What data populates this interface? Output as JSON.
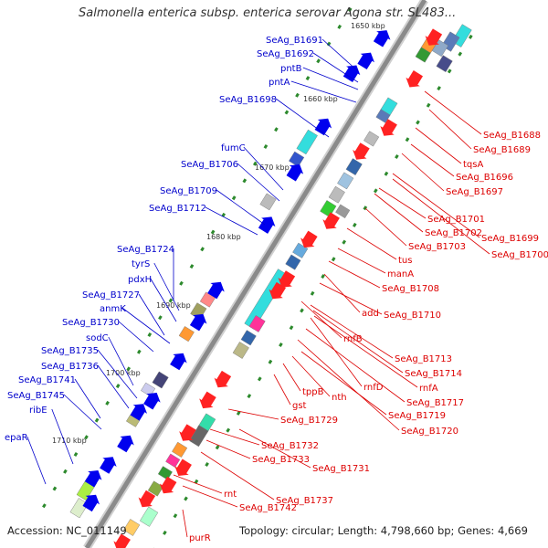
{
  "title": "Salmonella enterica subsp. enterica serovar Agona str. SL483...",
  "footer": {
    "accession": "Accession: NC_011149",
    "summary": "Topology: circular; Length: 4,798,660 bp; Genes: 4,669"
  },
  "colors": {
    "backbone": "#8a8a8a",
    "reverse_label": "#0000cc",
    "forward_label": "#dd0000",
    "tick_mark": "#2d8a2d"
  },
  "ticks": [
    "1650 kbp",
    "1660 kbp",
    "1670 kbp",
    "1680 kbp",
    "1690 kbp",
    "1700 kbp",
    "1710 kbp"
  ],
  "reverse_strand_genes": [
    "SeAg_B1691",
    "SeAg_B1692",
    "pntB",
    "pntA",
    "SeAg_B1698",
    "fumC",
    "SeAg_B1706",
    "SeAg_B1709",
    "SeAg_B1712",
    "SeAg_B1724",
    "tyrS",
    "pdxH",
    "SeAg_B1727",
    "anmK",
    "SeAg_B1730",
    "sodC",
    "SeAg_B1735",
    "SeAg_B1736",
    "SeAg_B1741",
    "SeAg_B1745",
    "ribE",
    "epaR"
  ],
  "forward_strand_genes": [
    "SeAg_B1688",
    "SeAg_B1689",
    "tqsA",
    "SeAg_B1696",
    "SeAg_B1697",
    "SeAg_B1701",
    "SeAg_B1702",
    "SeAg_B1699",
    "SeAg_B1703",
    "SeAg_B1700",
    "tus",
    "manA",
    "SeAg_B1708",
    "add",
    "SeAg_B1710",
    "rnfB",
    "SeAg_B1713",
    "SeAg_B1714",
    "rnfA",
    "rnfD",
    "SeAg_B1717",
    "nth",
    "tppB",
    "SeAg_B1719",
    "gst",
    "SeAg_B1729",
    "SeAg_B1720",
    "SeAg_B1732",
    "SeAg_B1733",
    "SeAg_B1731",
    "rnt",
    "SeAg_B1737",
    "SeAg_B1742",
    "purR"
  ]
}
